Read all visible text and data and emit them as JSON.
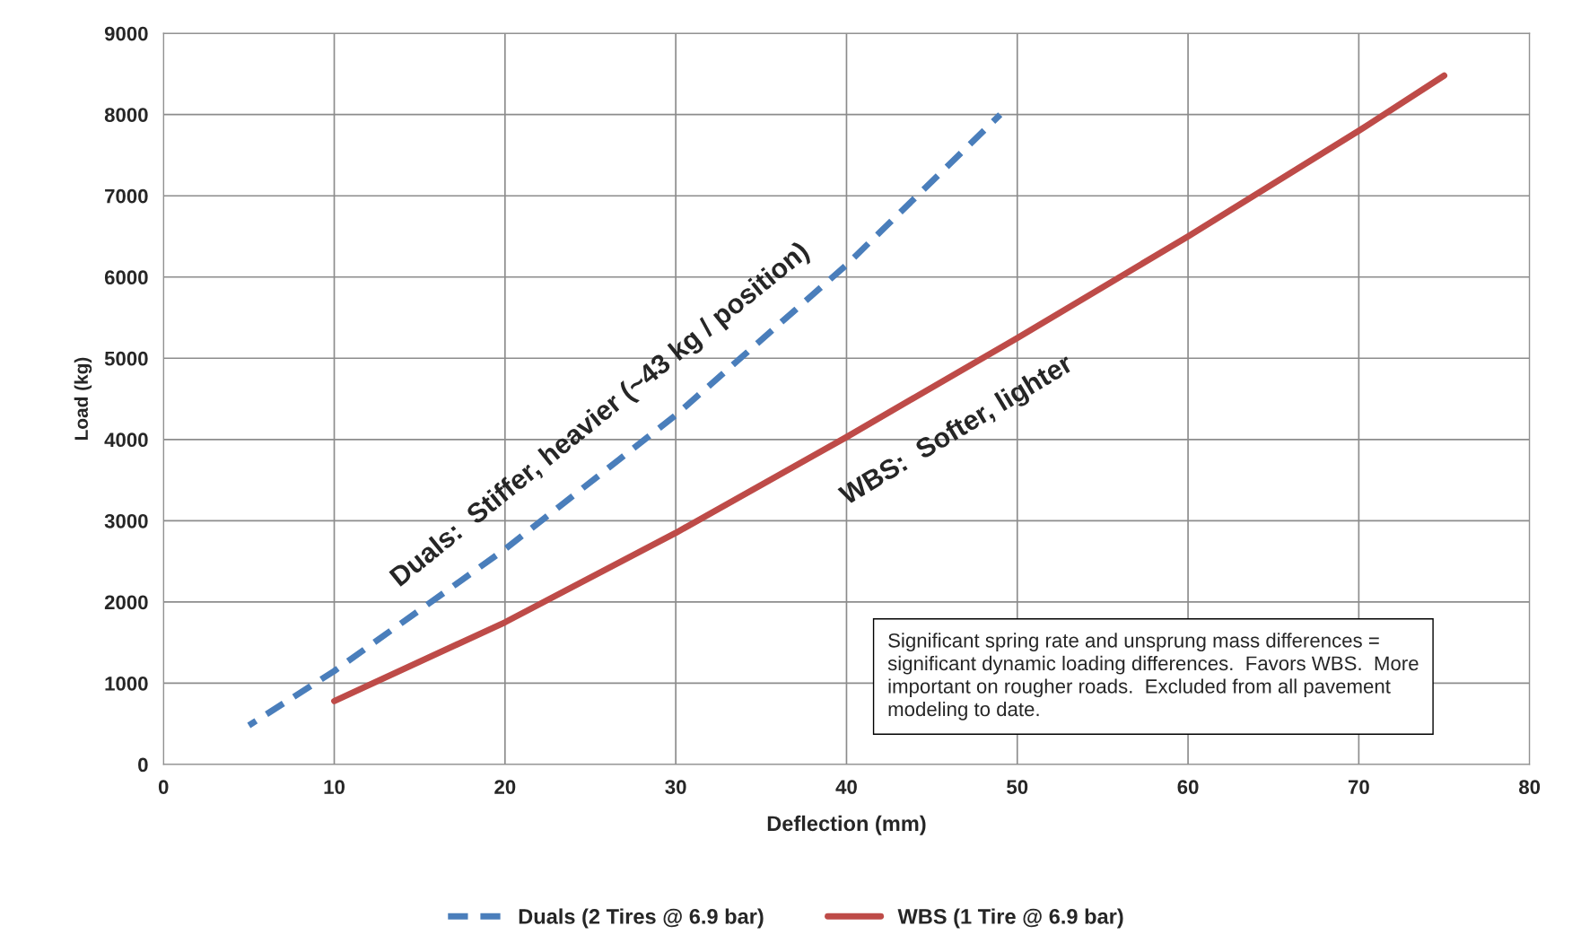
{
  "chart_data": {
    "type": "line",
    "xlabel": "Deflection (mm)",
    "ylabel": "Load (kg)",
    "xlim": [
      0,
      80
    ],
    "xticks": [
      0,
      10,
      20,
      30,
      40,
      50,
      60,
      70,
      80
    ],
    "ylim": [
      0,
      9000
    ],
    "yticks": [
      0,
      1000,
      2000,
      3000,
      4000,
      5000,
      6000,
      7000,
      8000,
      9000
    ],
    "grid": true,
    "legend": "bottom",
    "marker": "none",
    "series": [
      {
        "name": "Duals (2 Tires @ 6.9 bar)",
        "color": "#4a7ebb",
        "line_style": "dashed",
        "x": [
          5,
          10,
          20,
          30,
          40,
          49
        ],
        "values": [
          480,
          1150,
          2650,
          4300,
          6150,
          8000
        ]
      },
      {
        "name": "WBS (1 Tire @ 6.9 bar)",
        "color": "#be4b48",
        "line_style": "solid",
        "x": [
          10,
          20,
          30,
          40,
          50,
          60,
          70,
          75
        ],
        "values": [
          780,
          1750,
          2850,
          4030,
          5250,
          6500,
          7800,
          8480
        ]
      }
    ],
    "annotations": [
      "Duals:  Stiffer, heavier (~43 kg / position)",
      "WBS:  Softer, lighter",
      "Significant spring rate and unsprung mass differences = significant dynamic loading differences.  Favors WBS.  More important on rougher roads.  Excluded from all pavement modeling to date."
    ]
  }
}
